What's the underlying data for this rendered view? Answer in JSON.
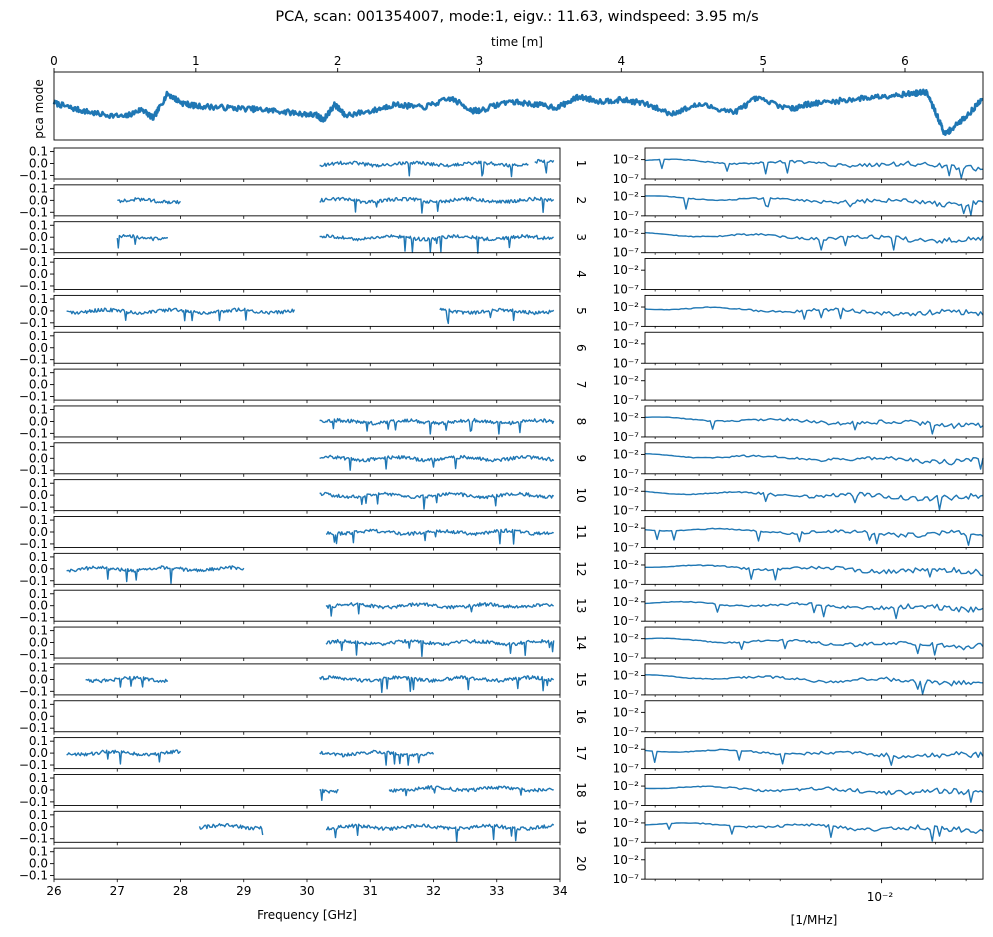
{
  "title": "PCA, scan: 001354007, mode:1, eigv.: 11.63, windspeed: 3.95 m/s",
  "series_color": "#1f77b4",
  "chart_data": [
    {
      "type": "line",
      "name": "pca-mode-timeseries",
      "xlabel": "time [m]",
      "ylabel": "pca mode",
      "xlim": [
        0,
        6.55
      ],
      "ylim": [
        -2.2,
        2.2
      ],
      "xticks": [
        0,
        1,
        2,
        3,
        4,
        5,
        6
      ],
      "x": [
        0,
        0.15,
        0.3,
        0.5,
        0.62,
        0.7,
        0.8,
        0.9,
        1.0,
        1.2,
        1.4,
        1.55,
        1.75,
        1.85,
        1.9,
        1.98,
        2.05,
        2.25,
        2.4,
        2.6,
        2.8,
        2.95,
        3.0,
        3.2,
        3.4,
        3.55,
        3.7,
        3.85,
        4.0,
        4.15,
        4.35,
        4.55,
        4.8,
        4.95,
        5.2,
        5.3,
        5.5,
        5.7,
        5.9,
        6.05,
        6.15,
        6.22,
        6.28,
        6.33,
        6.45,
        6.55
      ],
      "y": [
        0.2,
        -0.2,
        -0.5,
        -0.7,
        -0.2,
        -0.8,
        0.8,
        0.2,
        0.0,
        -0.1,
        -0.2,
        -0.3,
        -0.5,
        -0.6,
        -0.9,
        0.1,
        -0.6,
        -0.3,
        0.1,
        -0.1,
        0.5,
        -0.3,
        -0.3,
        0.3,
        0.1,
        -0.1,
        0.6,
        0.3,
        0.4,
        0.2,
        -0.5,
        0.1,
        -0.4,
        0.5,
        -0.2,
        0.1,
        0.3,
        0.5,
        0.7,
        0.8,
        0.9,
        -0.5,
        -1.8,
        -1.5,
        -0.5,
        0.5
      ]
    },
    {
      "type": "line",
      "name": "mode-spectra",
      "xlabel": "Frequency [GHz]",
      "xlim": [
        26,
        34
      ],
      "xticks": [
        26,
        27,
        28,
        29,
        30,
        31,
        32,
        33,
        34
      ],
      "ylim": [
        -0.13,
        0.13
      ],
      "yticks": [
        0.1,
        0.0,
        -0.1
      ],
      "ytick_labels": [
        "0.1",
        "0.0",
        "−0.1"
      ],
      "panels": [
        {
          "label": "1",
          "segments": [
            [
              30.2,
              33.5
            ],
            [
              33.6,
              33.9
            ]
          ]
        },
        {
          "label": "2",
          "segments": [
            [
              27.0,
              28.0
            ],
            [
              30.2,
              33.9
            ]
          ]
        },
        {
          "label": "3",
          "segments": [
            [
              27.0,
              27.8
            ],
            [
              30.2,
              33.9
            ]
          ]
        },
        {
          "label": "4",
          "segments": []
        },
        {
          "label": "5",
          "segments": [
            [
              26.2,
              29.8
            ],
            [
              32.1,
              33.9
            ]
          ]
        },
        {
          "label": "6",
          "segments": []
        },
        {
          "label": "7",
          "segments": []
        },
        {
          "label": "8",
          "segments": [
            [
              30.2,
              33.9
            ]
          ]
        },
        {
          "label": "9",
          "segments": [
            [
              30.2,
              33.9
            ]
          ]
        },
        {
          "label": "10",
          "segments": [
            [
              30.2,
              33.9
            ]
          ]
        },
        {
          "label": "11",
          "segments": [
            [
              30.3,
              33.9
            ]
          ]
        },
        {
          "label": "12",
          "segments": [
            [
              26.2,
              29.0
            ]
          ]
        },
        {
          "label": "13",
          "segments": [
            [
              30.3,
              33.9
            ]
          ]
        },
        {
          "label": "14",
          "segments": [
            [
              30.3,
              33.9
            ]
          ]
        },
        {
          "label": "15",
          "segments": [
            [
              26.5,
              27.8
            ],
            [
              30.2,
              33.9
            ]
          ]
        },
        {
          "label": "16",
          "segments": []
        },
        {
          "label": "17",
          "segments": [
            [
              26.2,
              28.0
            ],
            [
              30.2,
              32.0
            ]
          ]
        },
        {
          "label": "18",
          "segments": [
            [
              30.2,
              30.5
            ],
            [
              31.3,
              33.9
            ]
          ]
        },
        {
          "label": "19",
          "segments": [
            [
              28.3,
              29.3
            ],
            [
              30.3,
              33.9
            ]
          ]
        },
        {
          "label": "20",
          "segments": []
        }
      ]
    },
    {
      "type": "line",
      "name": "power-spectra",
      "xlabel": "[1/MHz]",
      "xscale": "log",
      "yscale": "log",
      "xtick_label": "10⁻²",
      "ylim_log10": [
        -7,
        1
      ],
      "yticks": [
        "10⁻²",
        "10⁻⁷"
      ],
      "panels": [
        "1",
        "2",
        "3",
        "4",
        "5",
        "6",
        "7",
        "8",
        "9",
        "10",
        "11",
        "12",
        "13",
        "14",
        "15",
        "16",
        "17",
        "18",
        "19",
        "20"
      ],
      "empty_panels": [
        "4",
        "6",
        "7",
        "16",
        "20"
      ]
    }
  ]
}
